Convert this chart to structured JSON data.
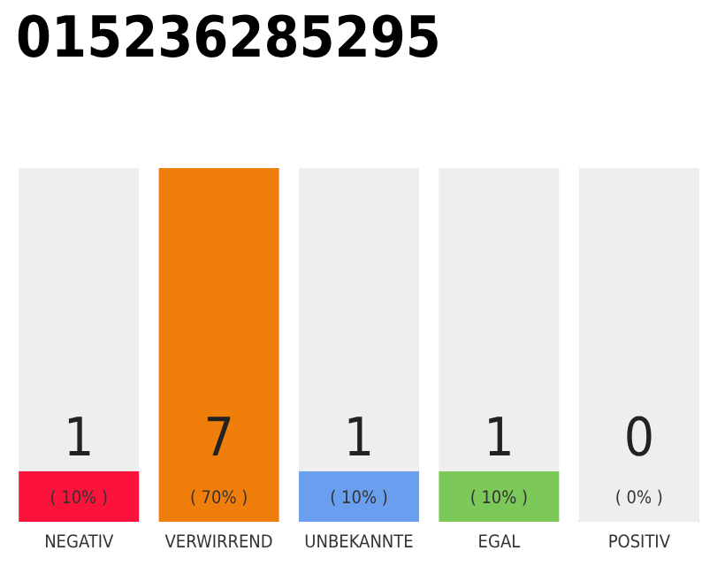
{
  "chart_data": {
    "type": "bar",
    "title": "015236285295",
    "categories": [
      "NEGATIV",
      "VERWIRREND",
      "UNBEKANNTE",
      "EGAL",
      "POSITIV"
    ],
    "stacked": true,
    "series": [
      {
        "colors": [
          "#fc133b",
          "#f07e0b",
          "#6a9ff0",
          "#7cc95a",
          "#2ca24a"
        ],
        "values": [
          10,
          70,
          10,
          10,
          0
        ],
        "value_labels": [
          "( 10% )",
          "( 70% )",
          "( 10% )",
          "( 10% )",
          "( 0% )"
        ]
      },
      {
        "color": "#eeeeee",
        "values": [
          60,
          0,
          60,
          60,
          70
        ]
      }
    ],
    "annotations": [
      "1",
      "7",
      "1",
      "1",
      "0"
    ],
    "tick_labels": "x"
  }
}
